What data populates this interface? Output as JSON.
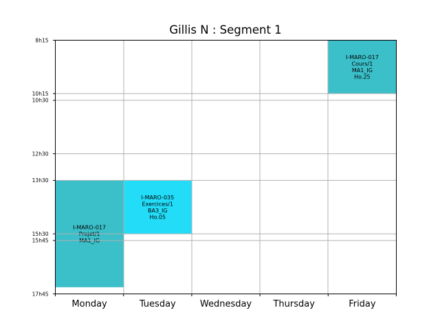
{
  "chart_data": {
    "type": "timetable",
    "title": "Gillis N : Segment 1",
    "days": [
      "Monday",
      "Tuesday",
      "Wednesday",
      "Thursday",
      "Friday"
    ],
    "y_range_hours": [
      8.25,
      17.75
    ],
    "y_ticks": [
      {
        "label": "8h15",
        "value": 8.25
      },
      {
        "label": "10h15",
        "value": 10.25
      },
      {
        "label": "10h30",
        "value": 10.5
      },
      {
        "label": "12h30",
        "value": 12.5
      },
      {
        "label": "13h30",
        "value": 13.5
      },
      {
        "label": "15h30",
        "value": 15.5
      },
      {
        "label": "15h45",
        "value": 15.75
      },
      {
        "label": "17h45",
        "value": 17.75
      }
    ],
    "grid": true,
    "events": [
      {
        "day": "Friday",
        "start": 8.25,
        "end": 10.25,
        "color": "#3bbfc9",
        "lines": [
          "I-MARO-017",
          "Cours/1",
          "MA1_IG",
          "Ho.25"
        ]
      },
      {
        "day": "Monday",
        "start": 13.5,
        "end": 17.5,
        "color": "#3bbfc9",
        "lines": [
          "I-MARO-017",
          "Projet/1",
          "MA1_IG"
        ]
      },
      {
        "day": "Tuesday",
        "start": 13.5,
        "end": 15.5,
        "color": "#22dcf8",
        "lines": [
          "I-MARO-035",
          "Exercices/1",
          "BA3_IG",
          "Ho.05"
        ]
      }
    ]
  }
}
